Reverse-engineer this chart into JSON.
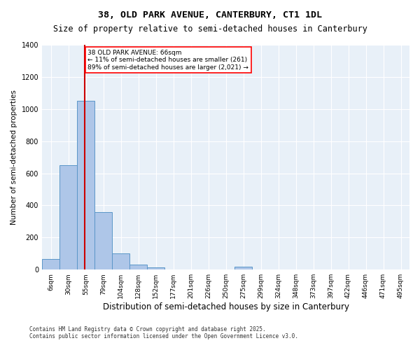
{
  "title1": "38, OLD PARK AVENUE, CANTERBURY, CT1 1DL",
  "title2": "Size of property relative to semi-detached houses in Canterbury",
  "xlabel": "Distribution of semi-detached houses by size in Canterbury",
  "ylabel": "Number of semi-detached properties",
  "footnote1": "Contains HM Land Registry data © Crown copyright and database right 2025.",
  "footnote2": "Contains public sector information licensed under the Open Government Licence v3.0.",
  "annotation_title": "38 OLD PARK AVENUE: 66sqm",
  "annotation_line1": "← 11% of semi-detached houses are smaller (261)",
  "annotation_line2": "89% of semi-detached houses are larger (2,021) →",
  "property_size": 66,
  "bar_labels": [
    "6sqm",
    "30sqm",
    "55sqm",
    "79sqm",
    "104sqm",
    "128sqm",
    "152sqm",
    "177sqm",
    "201sqm",
    "226sqm",
    "250sqm",
    "275sqm",
    "299sqm",
    "324sqm",
    "348sqm",
    "373sqm",
    "397sqm",
    "422sqm",
    "446sqm",
    "471sqm",
    "495sqm"
  ],
  "bar_values": [
    65,
    650,
    1050,
    360,
    100,
    30,
    15,
    0,
    0,
    0,
    0,
    20,
    0,
    0,
    0,
    0,
    0,
    0,
    0,
    0,
    0
  ],
  "bar_edges": [
    6,
    30,
    55,
    79,
    104,
    128,
    152,
    177,
    201,
    226,
    250,
    275,
    299,
    324,
    348,
    373,
    397,
    422,
    446,
    471,
    495
  ],
  "bar_color": "#aec6e8",
  "bar_edge_color": "#5a96c8",
  "line_color": "#cc0000",
  "bg_color": "#e8f0f8",
  "ylim": [
    0,
    1400
  ],
  "yticks": [
    0,
    200,
    400,
    600,
    800,
    1000,
    1200,
    1400
  ]
}
